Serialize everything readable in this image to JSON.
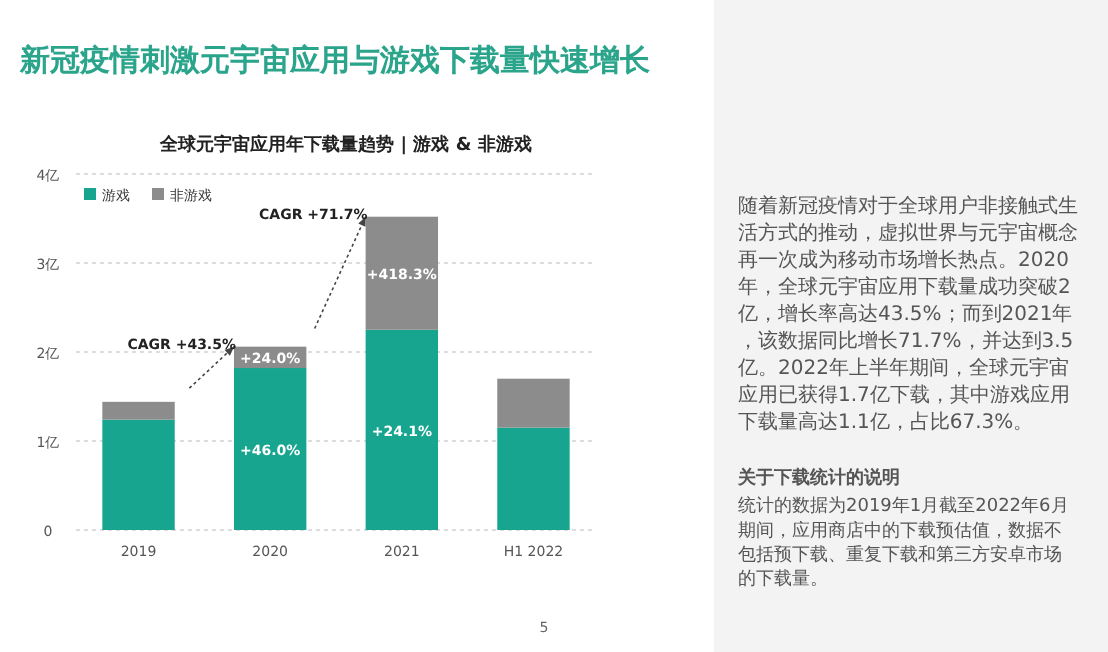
{
  "chart_data": {
    "type": "bar",
    "stacked": true,
    "title": "新冠疫情刺激元宇宙应用与游戏下载量快速增长",
    "subtitle": "全球元宇宙应用年下载量趋势 | 游戏 & 非游戏",
    "categories": [
      "2019",
      "2020",
      "2021",
      "H1 2022"
    ],
    "series": [
      {
        "name": "游戏",
        "color": "#17a58f",
        "values": [
          1.24,
          1.82,
          2.25,
          1.15
        ]
      },
      {
        "name": "非游戏",
        "color": "#8c8c8c",
        "values": [
          0.2,
          0.24,
          1.27,
          0.55
        ]
      }
    ],
    "ylim": [
      0,
      4
    ],
    "yticks": [
      0,
      {
        "value": 1,
        "label": "1亿"
      },
      {
        "value": 2,
        "label": "2亿"
      },
      {
        "value": 3,
        "label": "3亿"
      },
      {
        "value": 4,
        "label": "4亿"
      }
    ],
    "grid": "y",
    "legend": "top left",
    "annotations": [
      {
        "text": "CAGR +43.5%",
        "x": "2020",
        "y": 2.06
      },
      {
        "text": "CAGR +71.7%",
        "x": "2021",
        "y": 3.52
      },
      "+46.0%",
      "+24.0%",
      "+24.1%",
      "+418.3%",
      "随着新冠疫情对于全球用户非接触式生活方式的推动，虚拟世界与元宇宙概念再一次成为移动市场增长热点。2020年，全球元宇宙应用下载量成功突破2亿，增长率高达43.5%；而到2021年，该数据同比增长71.7%，并达到3.5亿。2022年上半年期间，全球元宇宙应用已获得1.7亿下载，其中游戏应用下载量高达1.1亿，占比67.3%。",
      "关于下载统计的说明",
      "统计的数据为2019年1月截至2022年6月期间，应用商店中的下载预估值，数据不包括预下载、重复下载和第三方安卓市场的下载量。",
      "5"
    ]
  }
}
